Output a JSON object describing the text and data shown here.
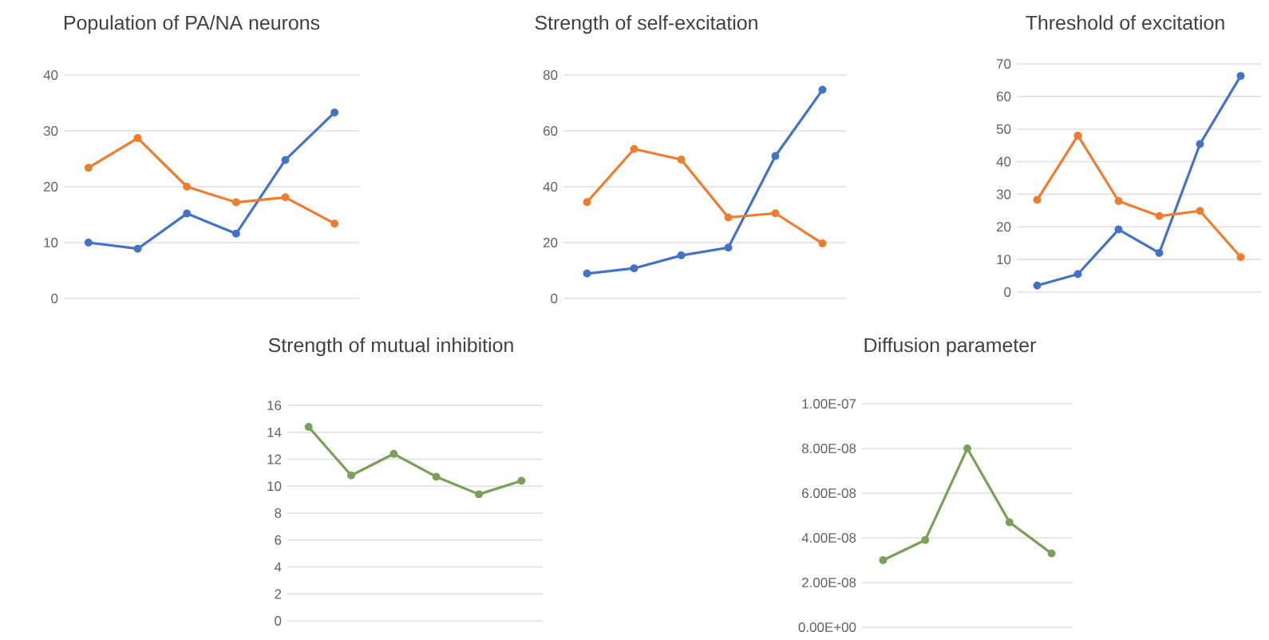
{
  "chart_data": [
    {
      "type": "line",
      "title": "Population of PA/NA neurons",
      "categories": [
        null,
        null,
        null,
        null,
        null,
        null
      ],
      "series": [
        {
          "color": "#4472c4",
          "values": [
            10,
            8.9,
            15.2,
            11.6,
            24.8,
            33.3
          ]
        },
        {
          "color": "#ed7d31",
          "values": [
            23.4,
            28.7,
            20.0,
            17.2,
            18.1,
            13.4
          ]
        }
      ],
      "ylim": [
        0,
        40
      ],
      "yticks": [
        0,
        10,
        20,
        30,
        40
      ],
      "grid": "y",
      "marker": "circle",
      "tick_labels": "y"
    },
    {
      "type": "line",
      "title": "Strength of self-excitation",
      "categories": [
        null,
        null,
        null,
        null,
        null,
        null
      ],
      "series": [
        {
          "color": "#4472c4",
          "values": [
            8.9,
            10.8,
            15.4,
            18.2,
            51.0,
            74.7
          ]
        },
        {
          "color": "#ed7d31",
          "values": [
            34.5,
            53.5,
            49.7,
            29.0,
            30.5,
            19.7
          ]
        }
      ],
      "ylim": [
        0,
        80
      ],
      "yticks": [
        0,
        20,
        40,
        60,
        80
      ],
      "grid": "y",
      "marker": "circle",
      "tick_labels": "y"
    },
    {
      "type": "line",
      "title": "Threshold of excitation",
      "categories": [
        null,
        null,
        null,
        null,
        null,
        null
      ],
      "series": [
        {
          "color": "#4472c4",
          "values": [
            2.0,
            5.5,
            19.2,
            12.0,
            45.4,
            66.3
          ]
        },
        {
          "color": "#ed7d31",
          "values": [
            28.3,
            48.0,
            27.9,
            23.3,
            24.9,
            10.7
          ]
        }
      ],
      "ylim": [
        0,
        70
      ],
      "yticks": [
        0,
        10,
        20,
        30,
        40,
        50,
        60,
        70
      ],
      "grid": "y",
      "marker": "circle",
      "tick_labels": "y"
    },
    {
      "type": "line",
      "title": "Strength of mutual inhibition",
      "categories": [
        null,
        null,
        null,
        null,
        null,
        null
      ],
      "series": [
        {
          "color": "#7ba05b",
          "values": [
            14.4,
            10.8,
            12.4,
            10.7,
            9.4,
            10.4
          ]
        }
      ],
      "ylim": [
        0,
        16
      ],
      "yticks": [
        0,
        2,
        4,
        6,
        8,
        10,
        12,
        14,
        16
      ],
      "grid": "y",
      "marker": "circle",
      "tick_labels": "y"
    },
    {
      "type": "line",
      "title": "Diffusion parameter",
      "categories": [
        null,
        null,
        null,
        null,
        null
      ],
      "series": [
        {
          "color": "#7ba05b",
          "values": [
            3e-08,
            3.9e-08,
            8e-08,
            4.7e-08,
            3.3e-08
          ]
        }
      ],
      "ylim": [
        0,
        1e-07
      ],
      "yticks": [
        {
          "value": 0,
          "label": "0.00E+00"
        },
        {
          "value": 2e-08,
          "label": "2.00E-08"
        },
        {
          "value": 4e-08,
          "label": "4.00E-08"
        },
        {
          "value": 6e-08,
          "label": "6.00E-08"
        },
        {
          "value": 8e-08,
          "label": "8.00E-08"
        },
        {
          "value": 1e-07,
          "label": "1.00E-07"
        }
      ],
      "grid": "y",
      "marker": "circle",
      "tick_labels": "y"
    }
  ]
}
